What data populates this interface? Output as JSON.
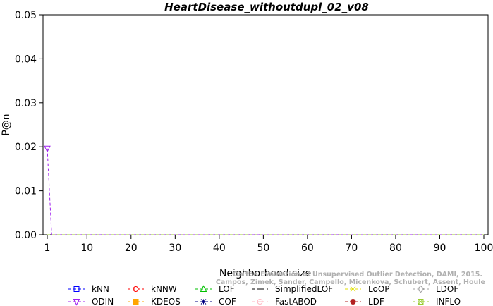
{
  "chart_data": {
    "type": "line",
    "title": "HeartDisease_withoutdupl_02_v08",
    "xlabel": "Neighborhood size",
    "ylabel": "P@n",
    "xlim": [
      1,
      100
    ],
    "ylim": [
      0,
      0.05
    ],
    "xticks": [
      1,
      10,
      20,
      30,
      40,
      50,
      60,
      70,
      80,
      90,
      100
    ],
    "yticks": [
      "0.00",
      "0.01",
      "0.02",
      "0.03",
      "0.04",
      "0.05"
    ],
    "grid": false,
    "legend_position": "bottom",
    "series": [
      {
        "name": "kNN",
        "color": "#0000ff",
        "marker": "square",
        "points": [
          [
            1,
            0.0
          ],
          [
            100,
            0.0
          ]
        ]
      },
      {
        "name": "kNNW",
        "color": "#ff0000",
        "marker": "circle",
        "points": [
          [
            1,
            0.0
          ],
          [
            100,
            0.0
          ]
        ]
      },
      {
        "name": "LOF",
        "color": "#00c000",
        "marker": "triangle-up",
        "points": [
          [
            1,
            0.0
          ],
          [
            100,
            0.0
          ]
        ]
      },
      {
        "name": "SimplifiedLOF",
        "color": "#000000",
        "marker": "plus",
        "points": [
          [
            1,
            0.0
          ],
          [
            100,
            0.0
          ]
        ]
      },
      {
        "name": "LoOP",
        "color": "#e0e000",
        "marker": "x",
        "points": [
          [
            1,
            0.0
          ],
          [
            100,
            0.0
          ]
        ]
      },
      {
        "name": "LDOF",
        "color": "#a0a0a0",
        "marker": "diamond",
        "points": [
          [
            1,
            0.0
          ],
          [
            100,
            0.0
          ]
        ]
      },
      {
        "name": "ODIN",
        "color": "#a020f0",
        "marker": "triangle-down",
        "points": [
          [
            1,
            0.0196
          ],
          [
            2,
            0.0
          ],
          [
            100,
            0.0
          ]
        ]
      },
      {
        "name": "KDEOS",
        "color": "#ffa500",
        "marker": "square-filled",
        "points": [
          [
            1,
            0.0
          ],
          [
            100,
            0.0
          ]
        ]
      },
      {
        "name": "COF",
        "color": "#000080",
        "marker": "star",
        "points": [
          [
            1,
            0.0
          ],
          [
            100,
            0.0
          ]
        ]
      },
      {
        "name": "FastABOD",
        "color": "#ffb6c1",
        "marker": "circle-plus",
        "points": [
          [
            1,
            0.0
          ],
          [
            100,
            0.0
          ]
        ]
      },
      {
        "name": "LDF",
        "color": "#b22222",
        "marker": "circle-filled",
        "points": [
          [
            1,
            0.0
          ],
          [
            100,
            0.0
          ]
        ]
      },
      {
        "name": "INFLO",
        "color": "#9acd32",
        "marker": "square-x",
        "points": [
          [
            1,
            0.0
          ],
          [
            100,
            0.0
          ]
        ]
      }
    ],
    "watermark": [
      "Campos, Zimek, Sander, Campello, Micenkova, Schubert, Assent, Houle",
      "On the Evaluation of Unsupervised Outlier Detection, DAMI, 2015."
    ]
  }
}
